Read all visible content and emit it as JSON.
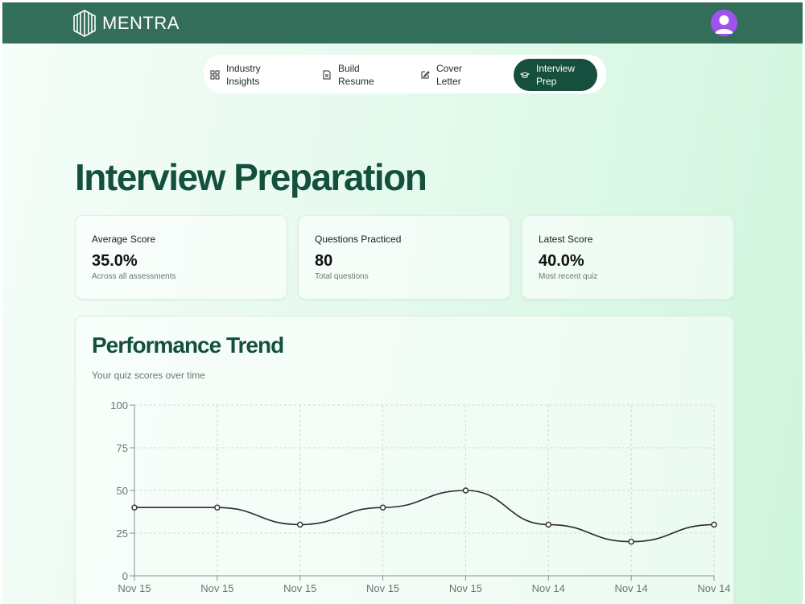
{
  "app": {
    "name": "MENTRA"
  },
  "nav": {
    "items": [
      {
        "label": "Industry Insights",
        "icon": "grid-icon",
        "active": false
      },
      {
        "label": "Build Resume",
        "icon": "document-icon",
        "active": false
      },
      {
        "label": "Cover Letter",
        "icon": "edit-icon",
        "active": false
      },
      {
        "label": "Interview Prep",
        "icon": "graduation-cap-icon",
        "active": true
      }
    ]
  },
  "page": {
    "title": "Interview Preparation"
  },
  "stats": [
    {
      "label": "Average Score",
      "value": "35.0%",
      "sub": "Across all assessments"
    },
    {
      "label": "Questions Practiced",
      "value": "80",
      "sub": "Total questions"
    },
    {
      "label": "Latest Score",
      "value": "40.0%",
      "sub": "Most recent quiz"
    }
  ],
  "performance": {
    "title": "Performance Trend",
    "subtitle": "Your quiz scores over time"
  },
  "colors": {
    "topbar": "#336e5b",
    "accent": "#164f3d",
    "title": "#13503e",
    "avatar": "#a052ef"
  },
  "chart_data": {
    "type": "line",
    "categories": [
      "Nov 15",
      "Nov 15",
      "Nov 15",
      "Nov 15",
      "Nov 15",
      "Nov 14",
      "Nov 14",
      "Nov 14"
    ],
    "values": [
      40,
      40,
      30,
      40,
      50,
      30,
      20,
      30
    ],
    "ylim": [
      0,
      100
    ],
    "yticks": [
      0,
      25,
      50,
      75,
      100
    ],
    "grid": true,
    "xlabel": "",
    "ylabel": ""
  }
}
